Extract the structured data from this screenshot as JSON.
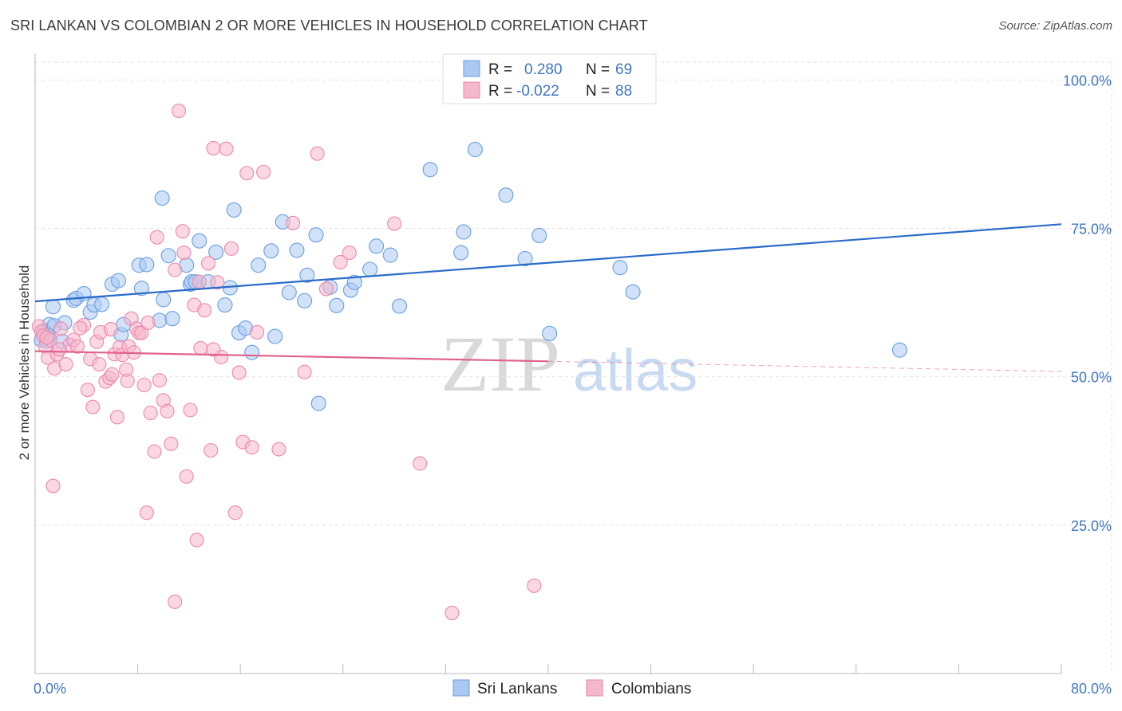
{
  "title": "SRI LANKAN VS COLOMBIAN 2 OR MORE VEHICLES IN HOUSEHOLD CORRELATION CHART",
  "source": "Source: ZipAtlas.com",
  "watermark": {
    "zip": "ZIP",
    "atlas": "atlas"
  },
  "legend": {
    "rows": [
      {
        "r_label": "R =",
        "r_value": "0.280",
        "n_label": "N =",
        "n_value": "69",
        "color": "#aac8f2"
      },
      {
        "r_label": "R =",
        "r_value": "-0.022",
        "n_label": "N =",
        "n_value": "88",
        "color": "#f5b7cc"
      }
    ]
  },
  "bottom_legend": {
    "items": [
      "Sri Lankans",
      "Colombians"
    ]
  },
  "chart_data": {
    "type": "scatter",
    "title": "SRI LANKAN VS COLOMBIAN 2 OR MORE VEHICLES IN HOUSEHOLD CORRELATION CHART",
    "xlabel": "",
    "ylabel": "2 or more Vehicles in Household",
    "xlim": [
      0,
      80
    ],
    "ylim": [
      0,
      103
    ],
    "x_tick_labels": [
      "0.0%",
      "80.0%"
    ],
    "y_tick_labels": [
      "100.0%",
      "75.0%",
      "50.0%",
      "25.0%"
    ],
    "y_ticks": [
      100,
      75,
      50,
      25
    ],
    "grid": true,
    "legend_placement": "top-center",
    "series": [
      {
        "name": "Sri Lankans",
        "color": "#6a9fe0",
        "fill": "#aac8f2",
        "trend": {
          "x": [
            0,
            80
          ],
          "y": [
            62.7,
            75.7
          ],
          "style": "solid",
          "color": "#2a6cc9"
        },
        "points": [
          [
            0.5,
            56.2
          ],
          [
            0.7,
            57.7
          ],
          [
            0.9,
            56.0
          ],
          [
            1.1,
            58.8
          ],
          [
            1.4,
            61.8
          ],
          [
            1.5,
            58.6
          ],
          [
            2.1,
            56.0
          ],
          [
            2.3,
            59.1
          ],
          [
            3.0,
            62.9
          ],
          [
            3.2,
            63.2
          ],
          [
            3.8,
            64.0
          ],
          [
            4.3,
            60.9
          ],
          [
            4.6,
            62.1
          ],
          [
            5.2,
            62.2
          ],
          [
            6.0,
            65.6
          ],
          [
            6.5,
            66.2
          ],
          [
            6.7,
            57.1
          ],
          [
            6.9,
            58.8
          ],
          [
            8.1,
            68.8
          ],
          [
            8.3,
            64.9
          ],
          [
            8.7,
            68.9
          ],
          [
            9.7,
            59.5
          ],
          [
            9.9,
            80.1
          ],
          [
            10.0,
            63.0
          ],
          [
            10.4,
            70.4
          ],
          [
            10.7,
            59.8
          ],
          [
            11.8,
            68.8
          ],
          [
            12.1,
            65.6
          ],
          [
            12.2,
            66.0
          ],
          [
            12.5,
            66.0
          ],
          [
            12.8,
            72.9
          ],
          [
            13.5,
            66.0
          ],
          [
            14.1,
            71.0
          ],
          [
            14.8,
            62.1
          ],
          [
            15.2,
            65.0
          ],
          [
            15.5,
            78.1
          ],
          [
            15.9,
            57.4
          ],
          [
            16.4,
            58.2
          ],
          [
            16.9,
            54.1
          ],
          [
            17.4,
            68.8
          ],
          [
            18.4,
            71.2
          ],
          [
            18.7,
            56.8
          ],
          [
            19.3,
            76.1
          ],
          [
            19.8,
            64.2
          ],
          [
            20.4,
            71.3
          ],
          [
            21.0,
            62.8
          ],
          [
            21.2,
            67.1
          ],
          [
            21.9,
            73.9
          ],
          [
            22.1,
            45.5
          ],
          [
            23.0,
            65.1
          ],
          [
            23.5,
            62.0
          ],
          [
            24.6,
            64.6
          ],
          [
            24.9,
            65.9
          ],
          [
            26.1,
            68.1
          ],
          [
            26.6,
            72.0
          ],
          [
            27.7,
            70.5
          ],
          [
            28.4,
            61.9
          ],
          [
            30.8,
            84.9
          ],
          [
            33.2,
            70.9
          ],
          [
            33.4,
            74.4
          ],
          [
            34.3,
            88.3
          ],
          [
            36.7,
            80.6
          ],
          [
            38.2,
            69.9
          ],
          [
            39.3,
            73.8
          ],
          [
            40.1,
            57.3
          ],
          [
            45.6,
            68.4
          ],
          [
            46.6,
            64.3
          ],
          [
            67.4,
            54.5
          ],
          [
            1.0,
            57.0
          ]
        ]
      },
      {
        "name": "Colombians",
        "color": "#ec8aac",
        "fill": "#f5b7cc",
        "trend": {
          "x": [
            0,
            40
          ],
          "y": [
            54.3,
            52.6
          ],
          "style": "solid",
          "color": "#e0628f",
          "extension": {
            "x": [
              40,
              80
            ],
            "y": [
              52.6,
              50.9
            ],
            "style": "dashed"
          }
        },
        "points": [
          [
            0.3,
            58.5
          ],
          [
            0.5,
            57.6
          ],
          [
            0.6,
            56.9
          ],
          [
            0.8,
            55.1
          ],
          [
            1.0,
            53.2
          ],
          [
            1.2,
            56.2
          ],
          [
            1.4,
            31.6
          ],
          [
            1.5,
            51.4
          ],
          [
            1.7,
            53.8
          ],
          [
            2.0,
            58.1
          ],
          [
            2.4,
            52.1
          ],
          [
            2.7,
            55.4
          ],
          [
            3.0,
            56.2
          ],
          [
            3.3,
            55.1
          ],
          [
            3.8,
            58.7
          ],
          [
            4.1,
            47.8
          ],
          [
            4.3,
            53.0
          ],
          [
            4.5,
            44.9
          ],
          [
            4.8,
            55.9
          ],
          [
            5.0,
            52.1
          ],
          [
            5.1,
            57.5
          ],
          [
            5.5,
            49.2
          ],
          [
            5.8,
            49.8
          ],
          [
            6.0,
            50.4
          ],
          [
            6.2,
            53.8
          ],
          [
            6.4,
            43.2
          ],
          [
            6.6,
            55.0
          ],
          [
            6.8,
            53.7
          ],
          [
            7.1,
            51.2
          ],
          [
            7.3,
            55.1
          ],
          [
            7.5,
            59.8
          ],
          [
            7.7,
            54.1
          ],
          [
            7.9,
            58.1
          ],
          [
            8.1,
            57.4
          ],
          [
            8.3,
            57.4
          ],
          [
            8.5,
            48.6
          ],
          [
            8.7,
            27.1
          ],
          [
            9.0,
            43.9
          ],
          [
            9.3,
            37.4
          ],
          [
            9.5,
            73.5
          ],
          [
            9.7,
            49.4
          ],
          [
            10.0,
            46.0
          ],
          [
            10.3,
            44.2
          ],
          [
            10.6,
            38.7
          ],
          [
            10.9,
            12.1
          ],
          [
            11.2,
            94.8
          ],
          [
            11.5,
            74.5
          ],
          [
            11.8,
            33.2
          ],
          [
            12.1,
            44.4
          ],
          [
            12.4,
            62.1
          ],
          [
            12.6,
            22.5
          ],
          [
            12.9,
            54.8
          ],
          [
            13.2,
            61.2
          ],
          [
            13.5,
            69.1
          ],
          [
            13.7,
            37.6
          ],
          [
            13.9,
            88.5
          ],
          [
            14.2,
            65.9
          ],
          [
            14.5,
            53.3
          ],
          [
            14.9,
            88.4
          ],
          [
            15.3,
            71.6
          ],
          [
            15.6,
            27.1
          ],
          [
            15.9,
            50.7
          ],
          [
            16.2,
            39.0
          ],
          [
            16.5,
            84.3
          ],
          [
            16.9,
            38.1
          ],
          [
            17.3,
            57.5
          ],
          [
            17.8,
            84.5
          ],
          [
            19.0,
            37.8
          ],
          [
            20.1,
            75.9
          ],
          [
            21.0,
            50.8
          ],
          [
            22.0,
            87.6
          ],
          [
            22.7,
            64.8
          ],
          [
            23.8,
            69.3
          ],
          [
            24.5,
            70.9
          ],
          [
            28.0,
            75.8
          ],
          [
            30.0,
            35.4
          ],
          [
            32.5,
            10.2
          ],
          [
            38.9,
            14.8
          ],
          [
            1.9,
            54.6
          ],
          [
            3.5,
            58.2
          ],
          [
            5.9,
            58.0
          ],
          [
            7.2,
            49.3
          ],
          [
            8.8,
            59.1
          ],
          [
            10.9,
            68.0
          ],
          [
            11.6,
            70.9
          ],
          [
            12.8,
            66.0
          ],
          [
            13.9,
            54.6
          ],
          [
            0.9,
            56.6
          ]
        ]
      }
    ]
  }
}
